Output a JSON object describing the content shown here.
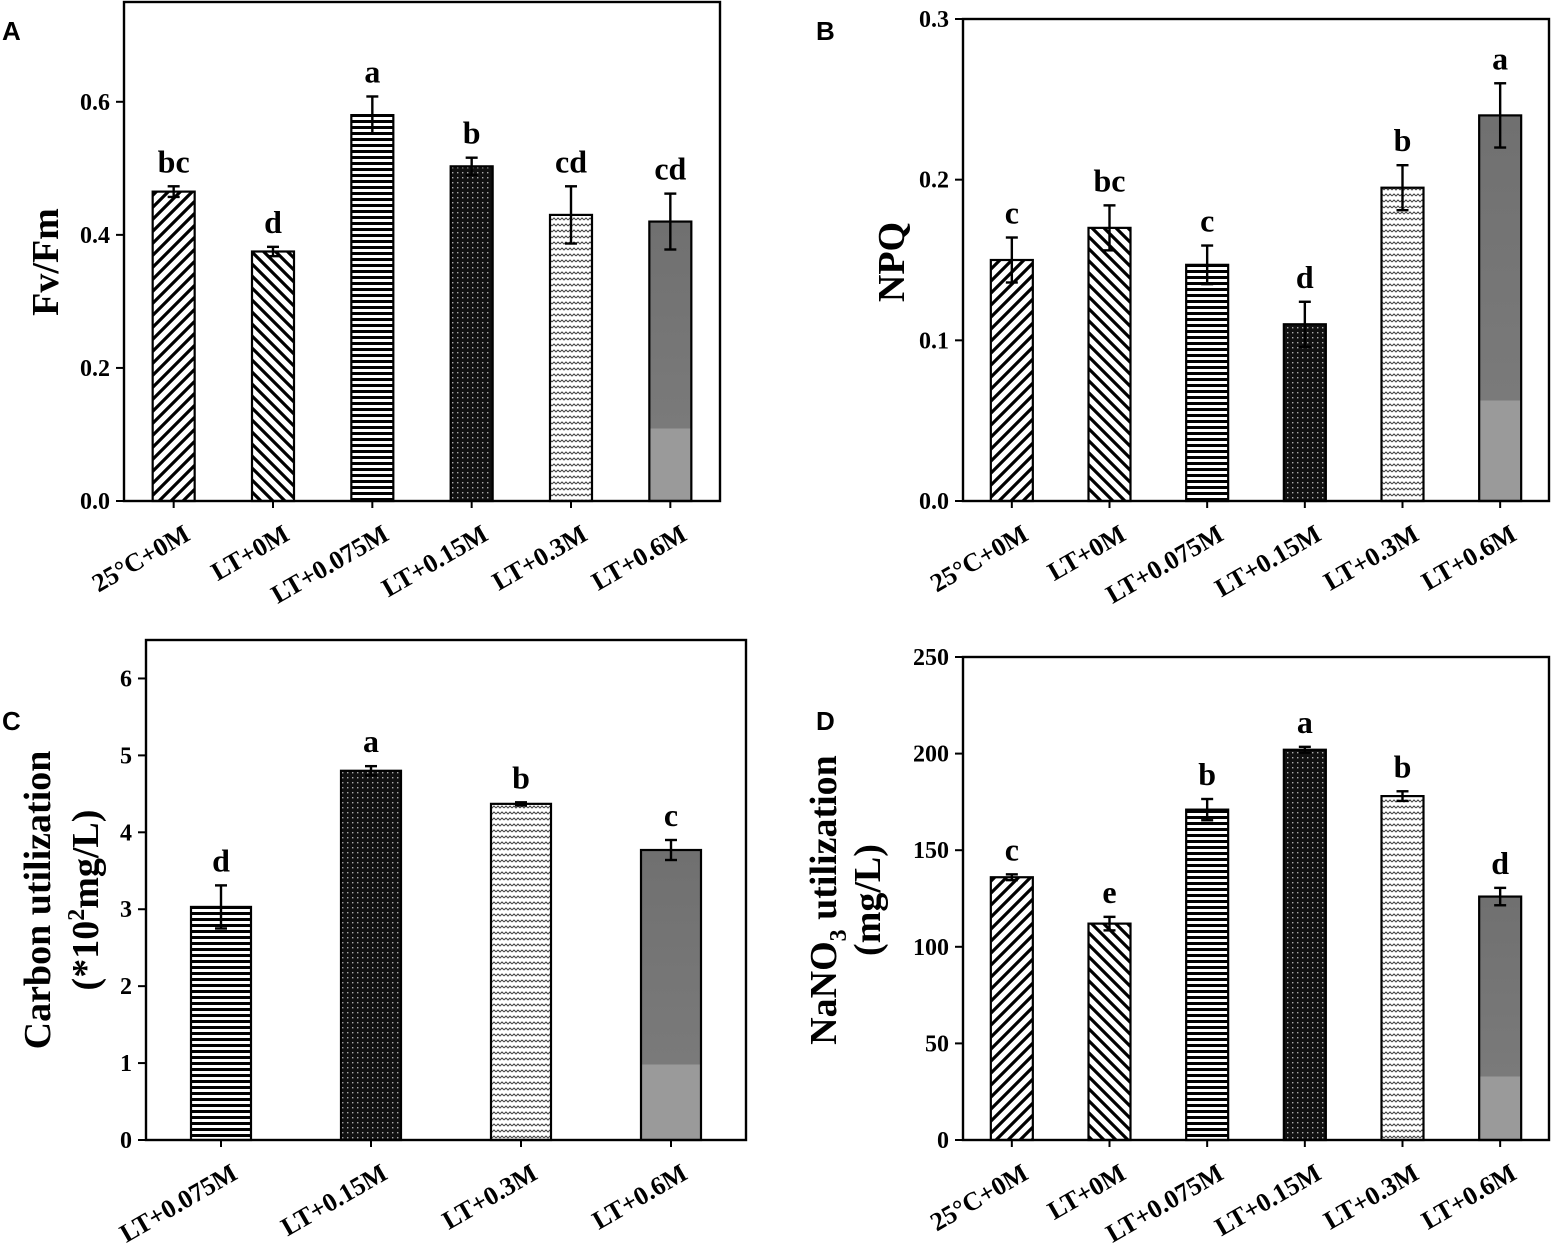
{
  "chart_data": [
    {
      "id": "A",
      "panel_label": "A",
      "type": "bar",
      "ylabel": "Fv/Fm",
      "ylim": [
        0,
        0.75
      ],
      "yticks": [
        "0.0",
        "0.2",
        "0.4",
        "0.6"
      ],
      "ytick_values": [
        0,
        0.2,
        0.4,
        0.6
      ],
      "categories": [
        "25°C+0M",
        "LT+0M",
        "LT+0.075M",
        "LT+0.15M",
        "LT+0.3M",
        "LT+0.6M"
      ],
      "patterns": [
        "diagB",
        "diagF",
        "horiz",
        "dots",
        "wave",
        "gray"
      ],
      "values": [
        0.465,
        0.375,
        0.58,
        0.503,
        0.43,
        0.42
      ],
      "errors": [
        0.008,
        0.007,
        0.028,
        0.013,
        0.043,
        0.042
      ],
      "labels": [
        "bc",
        "d",
        "a",
        "b",
        "cd",
        "cd"
      ]
    },
    {
      "id": "B",
      "panel_label": "B",
      "type": "bar",
      "ylabel": "NPQ",
      "ylim": [
        0,
        0.3
      ],
      "yticks": [
        "0.0",
        "0.1",
        "0.2",
        "0.3"
      ],
      "ytick_values": [
        0,
        0.1,
        0.2,
        0.3
      ],
      "categories": [
        "25°C+0M",
        "LT+0M",
        "LT+0.075M",
        "LT+0.15M",
        "LT+0.3M",
        "LT+0.6M"
      ],
      "patterns": [
        "diagB",
        "diagF",
        "horiz",
        "dots",
        "wave",
        "gray"
      ],
      "values": [
        0.15,
        0.17,
        0.147,
        0.11,
        0.195,
        0.24
      ],
      "errors": [
        0.014,
        0.014,
        0.012,
        0.014,
        0.014,
        0.02
      ],
      "labels": [
        "c",
        "bc",
        "c",
        "d",
        "b",
        "a"
      ]
    },
    {
      "id": "C",
      "panel_label": "C",
      "type": "bar",
      "ylabel_line1": "Carbon utilization",
      "ylabel_line2_prefix": "(*10",
      "ylabel_line2_sup": "2",
      "ylabel_line2_suffix": "mg/L)",
      "ylim": [
        0,
        6.5
      ],
      "yticks": [
        "0",
        "1",
        "2",
        "3",
        "4",
        "5",
        "6"
      ],
      "ytick_values": [
        0,
        1,
        2,
        3,
        4,
        5,
        6
      ],
      "categories": [
        "LT+0.075M",
        "LT+0.15M",
        "LT+0.3M",
        "LT+0.6M"
      ],
      "patterns": [
        "horiz",
        "dots",
        "wave",
        "gray"
      ],
      "values": [
        3.03,
        4.8,
        4.37,
        3.77
      ],
      "errors": [
        0.28,
        0.06,
        0.02,
        0.13
      ],
      "labels": [
        "d",
        "a",
        "b",
        "c"
      ]
    },
    {
      "id": "D",
      "panel_label": "D",
      "type": "bar",
      "ylabel_line1_prefix": "NaNO",
      "ylabel_line1_sub": "3",
      "ylabel_line1_suffix": " utilization",
      "ylabel_line2": "(mg/L)",
      "ylim": [
        0,
        250
      ],
      "yticks": [
        "0",
        "50",
        "100",
        "150",
        "200",
        "250"
      ],
      "ytick_values": [
        0,
        50,
        100,
        150,
        200,
        250
      ],
      "categories": [
        "25°C+0M",
        "LT+0M",
        "LT+0.075M",
        "LT+0.15M",
        "LT+0.3M",
        "LT+0.6M"
      ],
      "patterns": [
        "diagB",
        "diagF",
        "horiz",
        "dots",
        "wave",
        "gray"
      ],
      "values": [
        136,
        112,
        171,
        202,
        178,
        126
      ],
      "errors": [
        1.5,
        3.5,
        5.5,
        1.5,
        2.5,
        4.5
      ],
      "labels": [
        "c",
        "e",
        "b",
        "a",
        "b",
        "d"
      ]
    }
  ]
}
